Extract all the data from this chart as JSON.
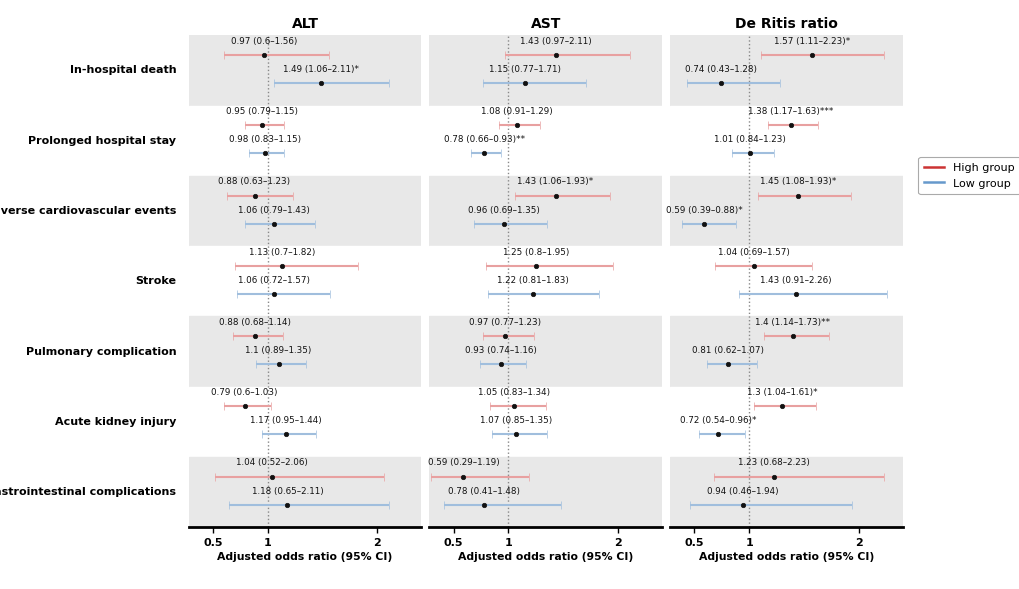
{
  "outcomes": [
    "In-hospital death",
    "Prolonged hospital stay",
    "Major adverse\ncardiovascular events",
    "Stroke",
    "Pulmonary complication",
    "Acute kidney injury",
    "Gastrointestinal\ncomplications"
  ],
  "outcome_labels_display": [
    "In-hospital death",
    "Prolonged hospital stay",
    "Major adverse cardiovascular events",
    "Stroke",
    "Pulmonary complication",
    "Acute kidney injury",
    "Gastrointestinal complications"
  ],
  "columns": [
    "ALT",
    "AST",
    "De Ritis ratio"
  ],
  "high_color": "#cc3333",
  "low_color": "#6699cc",
  "high_color_light": "#e8a0a0",
  "low_color_light": "#a0bedd",
  "data": {
    "ALT": {
      "high": [
        {
          "or": 0.97,
          "lo": 0.6,
          "hi": 1.56,
          "label": "0.97 (0.6–1.56)"
        },
        {
          "or": 0.95,
          "lo": 0.79,
          "hi": 1.15,
          "label": "0.95 (0.79–1.15)"
        },
        {
          "or": 0.88,
          "lo": 0.63,
          "hi": 1.23,
          "label": "0.88 (0.63–1.23)"
        },
        {
          "or": 1.13,
          "lo": 0.7,
          "hi": 1.82,
          "label": "1.13 (0.7–1.82)"
        },
        {
          "or": 0.88,
          "lo": 0.68,
          "hi": 1.14,
          "label": "0.88 (0.68–1.14)"
        },
        {
          "or": 0.79,
          "lo": 0.6,
          "hi": 1.03,
          "label": "0.79 (0.6–1.03)"
        },
        {
          "or": 1.04,
          "lo": 0.52,
          "hi": 2.06,
          "label": "1.04 (0.52–2.06)"
        }
      ],
      "low": [
        {
          "or": 1.49,
          "lo": 1.06,
          "hi": 2.11,
          "label": "1.49 (1.06–2.11)*"
        },
        {
          "or": 0.98,
          "lo": 0.83,
          "hi": 1.15,
          "label": "0.98 (0.83–1.15)"
        },
        {
          "or": 1.06,
          "lo": 0.79,
          "hi": 1.43,
          "label": "1.06 (0.79–1.43)"
        },
        {
          "or": 1.06,
          "lo": 0.72,
          "hi": 1.57,
          "label": "1.06 (0.72–1.57)"
        },
        {
          "or": 1.1,
          "lo": 0.89,
          "hi": 1.35,
          "label": "1.1 (0.89–1.35)"
        },
        {
          "or": 1.17,
          "lo": 0.95,
          "hi": 1.44,
          "label": "1.17 (0.95–1.44)"
        },
        {
          "or": 1.18,
          "lo": 0.65,
          "hi": 2.11,
          "label": "1.18 (0.65–2.11)"
        }
      ]
    },
    "AST": {
      "high": [
        {
          "or": 1.43,
          "lo": 0.97,
          "hi": 2.11,
          "label": "1.43 (0.97–2.11)"
        },
        {
          "or": 1.08,
          "lo": 0.91,
          "hi": 1.29,
          "label": "1.08 (0.91–1.29)"
        },
        {
          "or": 1.43,
          "lo": 1.06,
          "hi": 1.93,
          "label": "1.43 (1.06–1.93)*"
        },
        {
          "or": 1.25,
          "lo": 0.8,
          "hi": 1.95,
          "label": "1.25 (0.8–1.95)"
        },
        {
          "or": 0.97,
          "lo": 0.77,
          "hi": 1.23,
          "label": "0.97 (0.77–1.23)"
        },
        {
          "or": 1.05,
          "lo": 0.83,
          "hi": 1.34,
          "label": "1.05 (0.83–1.34)"
        },
        {
          "or": 0.59,
          "lo": 0.29,
          "hi": 1.19,
          "label": "0.59 (0.29–1.19)"
        }
      ],
      "low": [
        {
          "or": 1.15,
          "lo": 0.77,
          "hi": 1.71,
          "label": "1.15 (0.77–1.71)"
        },
        {
          "or": 0.78,
          "lo": 0.66,
          "hi": 0.93,
          "label": "0.78 (0.66–0.93)**"
        },
        {
          "or": 0.96,
          "lo": 0.69,
          "hi": 1.35,
          "label": "0.96 (0.69–1.35)"
        },
        {
          "or": 1.22,
          "lo": 0.81,
          "hi": 1.83,
          "label": "1.22 (0.81–1.83)"
        },
        {
          "or": 0.93,
          "lo": 0.74,
          "hi": 1.16,
          "label": "0.93 (0.74–1.16)"
        },
        {
          "or": 1.07,
          "lo": 0.85,
          "hi": 1.35,
          "label": "1.07 (0.85–1.35)"
        },
        {
          "or": 0.78,
          "lo": 0.41,
          "hi": 1.48,
          "label": "0.78 (0.41–1.48)"
        }
      ]
    },
    "De Ritis ratio": {
      "high": [
        {
          "or": 1.57,
          "lo": 1.11,
          "hi": 2.23,
          "label": "1.57 (1.11–2.23)*"
        },
        {
          "or": 1.38,
          "lo": 1.17,
          "hi": 1.63,
          "label": "1.38 (1.17–1.63)***"
        },
        {
          "or": 1.45,
          "lo": 1.08,
          "hi": 1.93,
          "label": "1.45 (1.08–1.93)*"
        },
        {
          "or": 1.04,
          "lo": 0.69,
          "hi": 1.57,
          "label": "1.04 (0.69–1.57)"
        },
        {
          "or": 1.4,
          "lo": 1.14,
          "hi": 1.73,
          "label": "1.4 (1.14–1.73)**"
        },
        {
          "or": 1.3,
          "lo": 1.04,
          "hi": 1.61,
          "label": "1.3 (1.04–1.61)*"
        },
        {
          "or": 1.23,
          "lo": 0.68,
          "hi": 2.23,
          "label": "1.23 (0.68–2.23)"
        }
      ],
      "low": [
        {
          "or": 0.74,
          "lo": 0.43,
          "hi": 1.28,
          "label": "0.74 (0.43–1.28)"
        },
        {
          "or": 1.01,
          "lo": 0.84,
          "hi": 1.23,
          "label": "1.01 (0.84–1.23)"
        },
        {
          "or": 0.59,
          "lo": 0.39,
          "hi": 0.88,
          "label": "0.59 (0.39–0.88)*"
        },
        {
          "or": 1.43,
          "lo": 0.91,
          "hi": 2.26,
          "label": "1.43 (0.91–2.26)"
        },
        {
          "or": 0.81,
          "lo": 0.62,
          "hi": 1.07,
          "label": "0.81 (0.62–1.07)"
        },
        {
          "or": 0.72,
          "lo": 0.54,
          "hi": 0.96,
          "label": "0.72 (0.54–0.96)*"
        },
        {
          "or": 0.94,
          "lo": 0.46,
          "hi": 1.94,
          "label": "0.94 (0.46–1.94)"
        }
      ]
    }
  },
  "shaded_rows": [
    0,
    2,
    4,
    6
  ],
  "shaded_color": "#e8e8e8",
  "white_color": "#ffffff",
  "xticks": [
    0.5,
    1.0,
    2.0
  ],
  "xlim": [
    0.28,
    2.4
  ],
  "xlabel": "Adjusted odds ratio (95% CI)"
}
